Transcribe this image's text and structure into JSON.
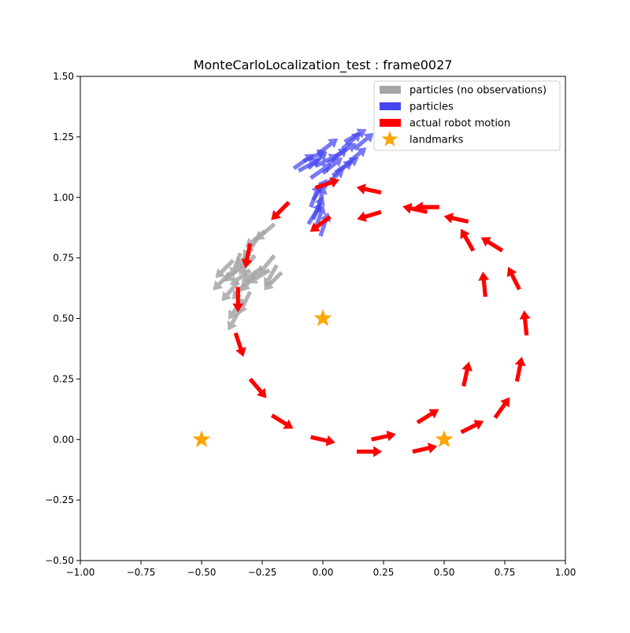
{
  "chart_data": {
    "type": "scatter",
    "title": "MonteCarloLocalization_test : frame0027",
    "xlabel": "",
    "ylabel": "",
    "xlim": [
      -1.0,
      1.0
    ],
    "ylim": [
      -0.5,
      1.5
    ],
    "grid": false,
    "legend_position": "top-right",
    "x_ticks": [
      "−1.00",
      "−0.75",
      "−0.50",
      "−0.25",
      "0.00",
      "0.25",
      "0.50",
      "0.75",
      "1.00"
    ],
    "y_ticks": [
      "−0.50",
      "−0.25",
      "0.00",
      "0.25",
      "0.50",
      "0.75",
      "1.00",
      "1.25",
      "1.50"
    ],
    "x_tick_values": [
      -1.0,
      -0.75,
      -0.5,
      -0.25,
      0.0,
      0.25,
      0.5,
      0.75,
      1.0
    ],
    "y_tick_values": [
      -0.5,
      -0.25,
      0.0,
      0.25,
      0.5,
      0.75,
      1.0,
      1.25,
      1.5
    ],
    "legend": [
      {
        "label": "particles (no observations)",
        "color": "#a6a6a6",
        "kind": "bar"
      },
      {
        "label": "particles",
        "color": "#4545f0",
        "kind": "bar"
      },
      {
        "label": "actual robot motion",
        "color": "#ff0000",
        "kind": "bar"
      },
      {
        "label": "landmarks",
        "color": "#ffa500",
        "kind": "star"
      }
    ],
    "series": [
      {
        "name": "actual robot motion",
        "color": "#ff0000",
        "arrows": [
          [
            -0.03,
            1.04,
            0.06,
            0.02
          ],
          [
            0.24,
            1.02,
            -0.09,
            0.02
          ],
          [
            0.43,
            0.94,
            -0.09,
            0.02
          ],
          [
            0.6,
            0.9,
            -0.09,
            0.02
          ],
          [
            0.74,
            0.78,
            -0.08,
            0.05
          ],
          [
            0.81,
            0.62,
            -0.04,
            0.08
          ],
          [
            0.84,
            0.43,
            -0.01,
            0.1
          ],
          [
            0.8,
            0.24,
            0.02,
            0.1
          ],
          [
            0.71,
            0.09,
            0.05,
            0.07
          ],
          [
            0.57,
            0.03,
            0.06,
            0.03
          ],
          [
            0.37,
            -0.05,
            0.09,
            0.02
          ],
          [
            0.14,
            -0.05,
            0.09,
            0.0
          ],
          [
            -0.05,
            0.01,
            0.09,
            -0.02
          ],
          [
            -0.21,
            0.1,
            0.08,
            -0.05
          ],
          [
            -0.3,
            0.25,
            0.06,
            -0.07
          ],
          [
            -0.36,
            0.44,
            0.03,
            -0.09
          ],
          [
            -0.35,
            0.63,
            0.0,
            -0.1
          ],
          [
            -0.3,
            0.81,
            -0.02,
            -0.1
          ],
          [
            -0.14,
            0.98,
            -0.07,
            -0.07
          ],
          [
            0.03,
            0.92,
            -0.08,
            -0.06
          ],
          [
            0.24,
            0.94,
            -0.1,
            -0.03
          ],
          [
            0.48,
            0.96,
            -0.09,
            0.0
          ],
          [
            0.62,
            0.78,
            -0.04,
            0.07
          ],
          [
            0.67,
            0.59,
            -0.01,
            0.1
          ],
          [
            0.58,
            0.22,
            0.02,
            0.09
          ],
          [
            0.39,
            0.07,
            0.08,
            0.05
          ],
          [
            0.2,
            0.0,
            0.09,
            0.02
          ]
        ]
      },
      {
        "name": "particles",
        "color": "#4545f0",
        "arrows": [
          [
            -0.12,
            1.12,
            0.1,
            0.07
          ],
          [
            -0.1,
            1.11,
            0.11,
            0.06
          ],
          [
            -0.06,
            1.12,
            0.09,
            0.08
          ],
          [
            -0.03,
            1.13,
            0.12,
            0.06
          ],
          [
            0.0,
            1.1,
            0.1,
            0.08
          ],
          [
            0.02,
            1.14,
            0.09,
            0.07
          ],
          [
            0.05,
            1.17,
            0.1,
            0.06
          ],
          [
            0.08,
            1.2,
            0.08,
            0.07
          ],
          [
            -0.08,
            1.15,
            0.11,
            0.05
          ],
          [
            0.04,
            1.09,
            0.11,
            0.08
          ],
          [
            0.1,
            1.14,
            0.06,
            0.05
          ],
          [
            -0.02,
            1.18,
            0.09,
            0.07
          ],
          [
            0.06,
            1.11,
            0.08,
            0.05
          ],
          [
            0.13,
            1.2,
            0.06,
            0.05
          ],
          [
            0.01,
            1.05,
            0.08,
            0.07
          ],
          [
            -0.05,
            1.08,
            0.1,
            0.07
          ],
          [
            0.09,
            1.23,
            0.07,
            0.04
          ],
          [
            -0.05,
            0.96,
            0.03,
            0.08
          ],
          [
            -0.04,
            0.91,
            0.04,
            0.09
          ],
          [
            -0.03,
            0.87,
            0.03,
            0.09
          ],
          [
            -0.02,
            0.95,
            0.02,
            0.08
          ],
          [
            -0.06,
            0.89,
            0.05,
            0.08
          ],
          [
            -0.01,
            0.84,
            0.03,
            0.09
          ],
          [
            -0.04,
            0.99,
            0.04,
            0.06
          ]
        ]
      },
      {
        "name": "particles (no observations)",
        "color": "#a6a6a6",
        "arrows": [
          [
            -0.37,
            0.74,
            -0.08,
            -0.08
          ],
          [
            -0.33,
            0.72,
            -0.08,
            -0.07
          ],
          [
            -0.3,
            0.7,
            -0.08,
            -0.06
          ],
          [
            -0.27,
            0.69,
            -0.07,
            -0.08
          ],
          [
            -0.31,
            0.66,
            -0.07,
            -0.09
          ],
          [
            -0.25,
            0.71,
            -0.09,
            -0.06
          ],
          [
            -0.22,
            0.7,
            -0.08,
            -0.05
          ],
          [
            -0.35,
            0.65,
            -0.06,
            -0.07
          ],
          [
            -0.3,
            0.61,
            -0.04,
            -0.08
          ],
          [
            -0.33,
            0.58,
            -0.05,
            -0.07
          ],
          [
            -0.34,
            0.54,
            -0.04,
            -0.07
          ],
          [
            -0.28,
            0.76,
            -0.06,
            -0.07
          ],
          [
            -0.27,
            0.83,
            -0.05,
            -0.07
          ],
          [
            -0.24,
            0.86,
            -0.06,
            -0.05
          ],
          [
            -0.2,
            0.89,
            -0.07,
            -0.06
          ],
          [
            -0.29,
            0.79,
            -0.05,
            -0.06
          ],
          [
            -0.19,
            0.72,
            -0.04,
            -0.07
          ],
          [
            -0.17,
            0.69,
            -0.06,
            -0.06
          ],
          [
            -0.2,
            0.76,
            -0.05,
            -0.06
          ],
          [
            -0.38,
            0.69,
            -0.05,
            -0.05
          ],
          [
            -0.34,
            0.77,
            -0.03,
            -0.08
          ]
        ]
      },
      {
        "name": "landmarks",
        "color": "#ffa500",
        "points": [
          [
            0.0,
            0.5
          ],
          [
            -0.5,
            0.0
          ],
          [
            0.5,
            0.0
          ]
        ]
      }
    ]
  }
}
